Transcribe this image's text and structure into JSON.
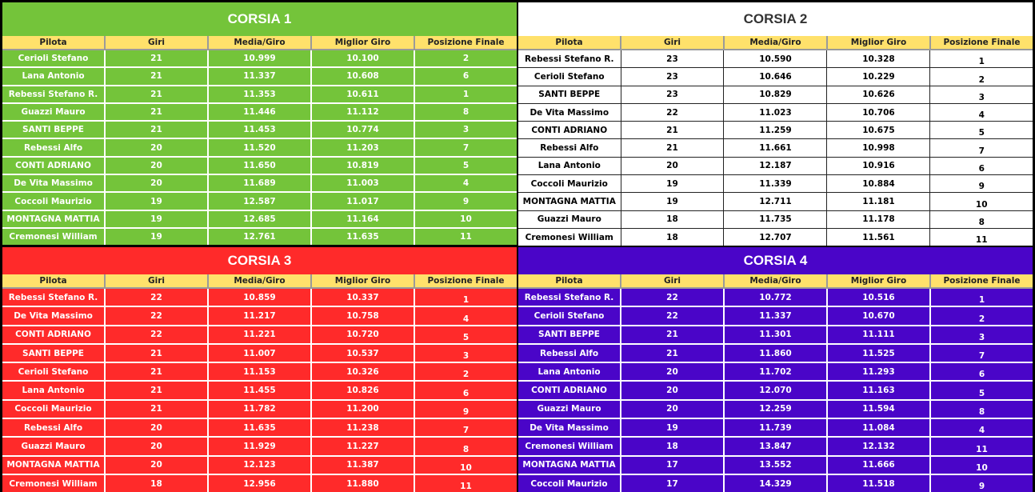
{
  "columns": [
    "Pilota",
    "Giri",
    "Media/Giro",
    "Miglior Giro",
    "Posizione Finale"
  ],
  "panels": [
    {
      "title": "CORSIA 1",
      "theme": "green",
      "color": "#74c43a",
      "rows": [
        [
          "Cerioli Stefano",
          "21",
          "10.999",
          "10.100",
          "2"
        ],
        [
          "Lana Antonio",
          "21",
          "11.337",
          "10.608",
          "6"
        ],
        [
          "Rebessi Stefano R.",
          "21",
          "11.353",
          "10.611",
          "1"
        ],
        [
          "Guazzi Mauro",
          "21",
          "11.446",
          "11.112",
          "8"
        ],
        [
          "SANTI BEPPE",
          "21",
          "11.453",
          "10.774",
          "3"
        ],
        [
          "Rebessi Alfo",
          "20",
          "11.520",
          "11.203",
          "7"
        ],
        [
          "CONTI ADRIANO",
          "20",
          "11.650",
          "10.819",
          "5"
        ],
        [
          "De Vita Massimo",
          "20",
          "11.689",
          "11.003",
          "4"
        ],
        [
          "Coccoli Maurizio",
          "19",
          "12.587",
          "11.017",
          "9"
        ],
        [
          "MONTAGNA MATTIA",
          "19",
          "12.685",
          "11.164",
          "10"
        ],
        [
          "Cremonesi William",
          "19",
          "12.761",
          "11.635",
          "11"
        ]
      ]
    },
    {
      "title": "CORSIA 2",
      "theme": "white",
      "color": "#ffffff",
      "rows": [
        [
          "Rebessi Stefano R.",
          "23",
          "10.590",
          "10.328",
          "1"
        ],
        [
          "Cerioli Stefano",
          "23",
          "10.646",
          "10.229",
          "2"
        ],
        [
          "SANTI BEPPE",
          "23",
          "10.829",
          "10.626",
          "3"
        ],
        [
          "De Vita Massimo",
          "22",
          "11.023",
          "10.706",
          "4"
        ],
        [
          "CONTI ADRIANO",
          "21",
          "11.259",
          "10.675",
          "5"
        ],
        [
          "Rebessi Alfo",
          "21",
          "11.661",
          "10.998",
          "7"
        ],
        [
          "Lana Antonio",
          "20",
          "12.187",
          "10.916",
          "6"
        ],
        [
          "Coccoli Maurizio",
          "19",
          "11.339",
          "10.884",
          "9"
        ],
        [
          "MONTAGNA MATTIA",
          "19",
          "12.711",
          "11.181",
          "10"
        ],
        [
          "Guazzi Mauro",
          "18",
          "11.735",
          "11.178",
          "8"
        ],
        [
          "Cremonesi William",
          "18",
          "12.707",
          "11.561",
          "11"
        ]
      ]
    },
    {
      "title": "CORSIA 3",
      "theme": "red",
      "color": "#ff2a2a",
      "rows": [
        [
          "Rebessi Stefano R.",
          "22",
          "10.859",
          "10.337",
          "1"
        ],
        [
          "De Vita Massimo",
          "22",
          "11.217",
          "10.758",
          "4"
        ],
        [
          "CONTI ADRIANO",
          "22",
          "11.221",
          "10.720",
          "5"
        ],
        [
          "SANTI BEPPE",
          "21",
          "11.007",
          "10.537",
          "3"
        ],
        [
          "Cerioli Stefano",
          "21",
          "11.153",
          "10.326",
          "2"
        ],
        [
          "Lana Antonio",
          "21",
          "11.455",
          "10.826",
          "6"
        ],
        [
          "Coccoli Maurizio",
          "21",
          "11.782",
          "11.200",
          "9"
        ],
        [
          "Rebessi Alfo",
          "20",
          "11.635",
          "11.238",
          "7"
        ],
        [
          "Guazzi Mauro",
          "20",
          "11.929",
          "11.227",
          "8"
        ],
        [
          "MONTAGNA MATTIA",
          "20",
          "12.123",
          "11.387",
          "10"
        ],
        [
          "Cremonesi William",
          "18",
          "12.956",
          "11.880",
          "11"
        ]
      ]
    },
    {
      "title": "CORSIA 4",
      "theme": "purple",
      "color": "#4a05c8",
      "rows": [
        [
          "Rebessi Stefano R.",
          "22",
          "10.772",
          "10.516",
          "1"
        ],
        [
          "Cerioli Stefano",
          "22",
          "11.337",
          "10.670",
          "2"
        ],
        [
          "SANTI BEPPE",
          "21",
          "11.301",
          "11.111",
          "3"
        ],
        [
          "Rebessi Alfo",
          "21",
          "11.860",
          "11.525",
          "7"
        ],
        [
          "Lana Antonio",
          "20",
          "11.702",
          "11.293",
          "6"
        ],
        [
          "CONTI ADRIANO",
          "20",
          "12.070",
          "11.163",
          "5"
        ],
        [
          "Guazzi Mauro",
          "20",
          "12.259",
          "11.594",
          "8"
        ],
        [
          "De Vita Massimo",
          "19",
          "11.739",
          "11.084",
          "4"
        ],
        [
          "Cremonesi William",
          "18",
          "13.847",
          "12.132",
          "11"
        ],
        [
          "MONTAGNA MATTIA",
          "17",
          "13.552",
          "11.666",
          "10"
        ],
        [
          "Coccoli Maurizio",
          "17",
          "14.329",
          "11.518",
          "9"
        ]
      ]
    }
  ]
}
